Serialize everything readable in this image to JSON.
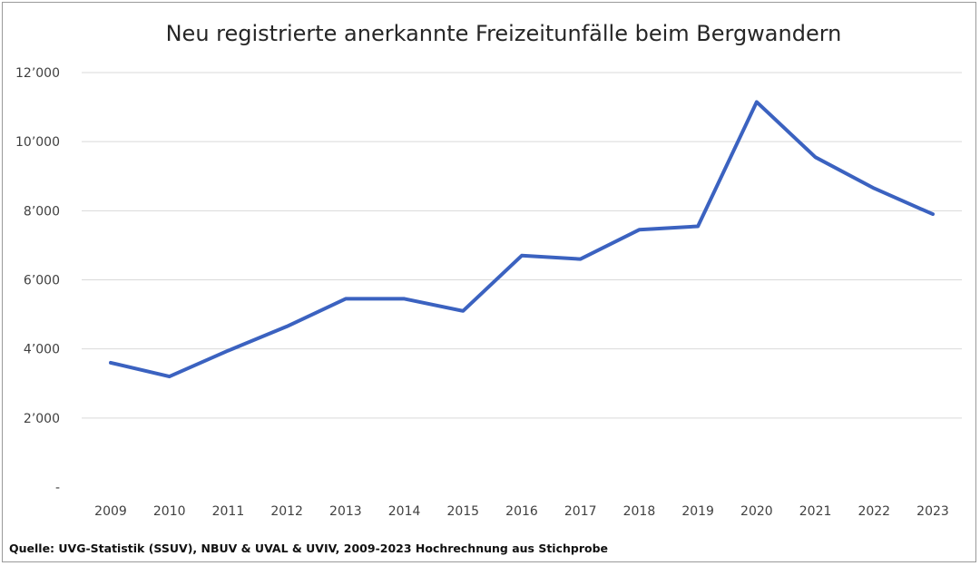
{
  "chart_data": {
    "type": "line",
    "title": "Neu registrierte anerkannte Freizeitunfälle beim Bergwandern",
    "xlabel": "",
    "ylabel": "",
    "categories": [
      "2009",
      "2010",
      "2011",
      "2012",
      "2013",
      "2014",
      "2015",
      "2016",
      "2017",
      "2018",
      "2019",
      "2020",
      "2021",
      "2022",
      "2023"
    ],
    "series": [
      {
        "name": "Freizeitunfälle beim Bergwandern",
        "values": [
          3600,
          3200,
          3950,
          4650,
          5450,
          5450,
          5100,
          6700,
          6600,
          7450,
          7550,
          11150,
          9550,
          8650,
          7900
        ],
        "color": "#3b62c0"
      }
    ],
    "ylim": [
      0,
      12000
    ],
    "yticks": [
      0,
      2000,
      4000,
      6000,
      8000,
      10000,
      12000
    ],
    "ytick_labels": [
      "-",
      "2’000",
      "4’000",
      "6’000",
      "8’000",
      "10’000",
      "12’000"
    ],
    "grid": true,
    "legend": "none"
  },
  "source_note": "Quelle: UVG-Statistik (SSUV), NBUV & UVAL & UVIV, 2009-2023 Hochrechnung aus Stichprobe"
}
